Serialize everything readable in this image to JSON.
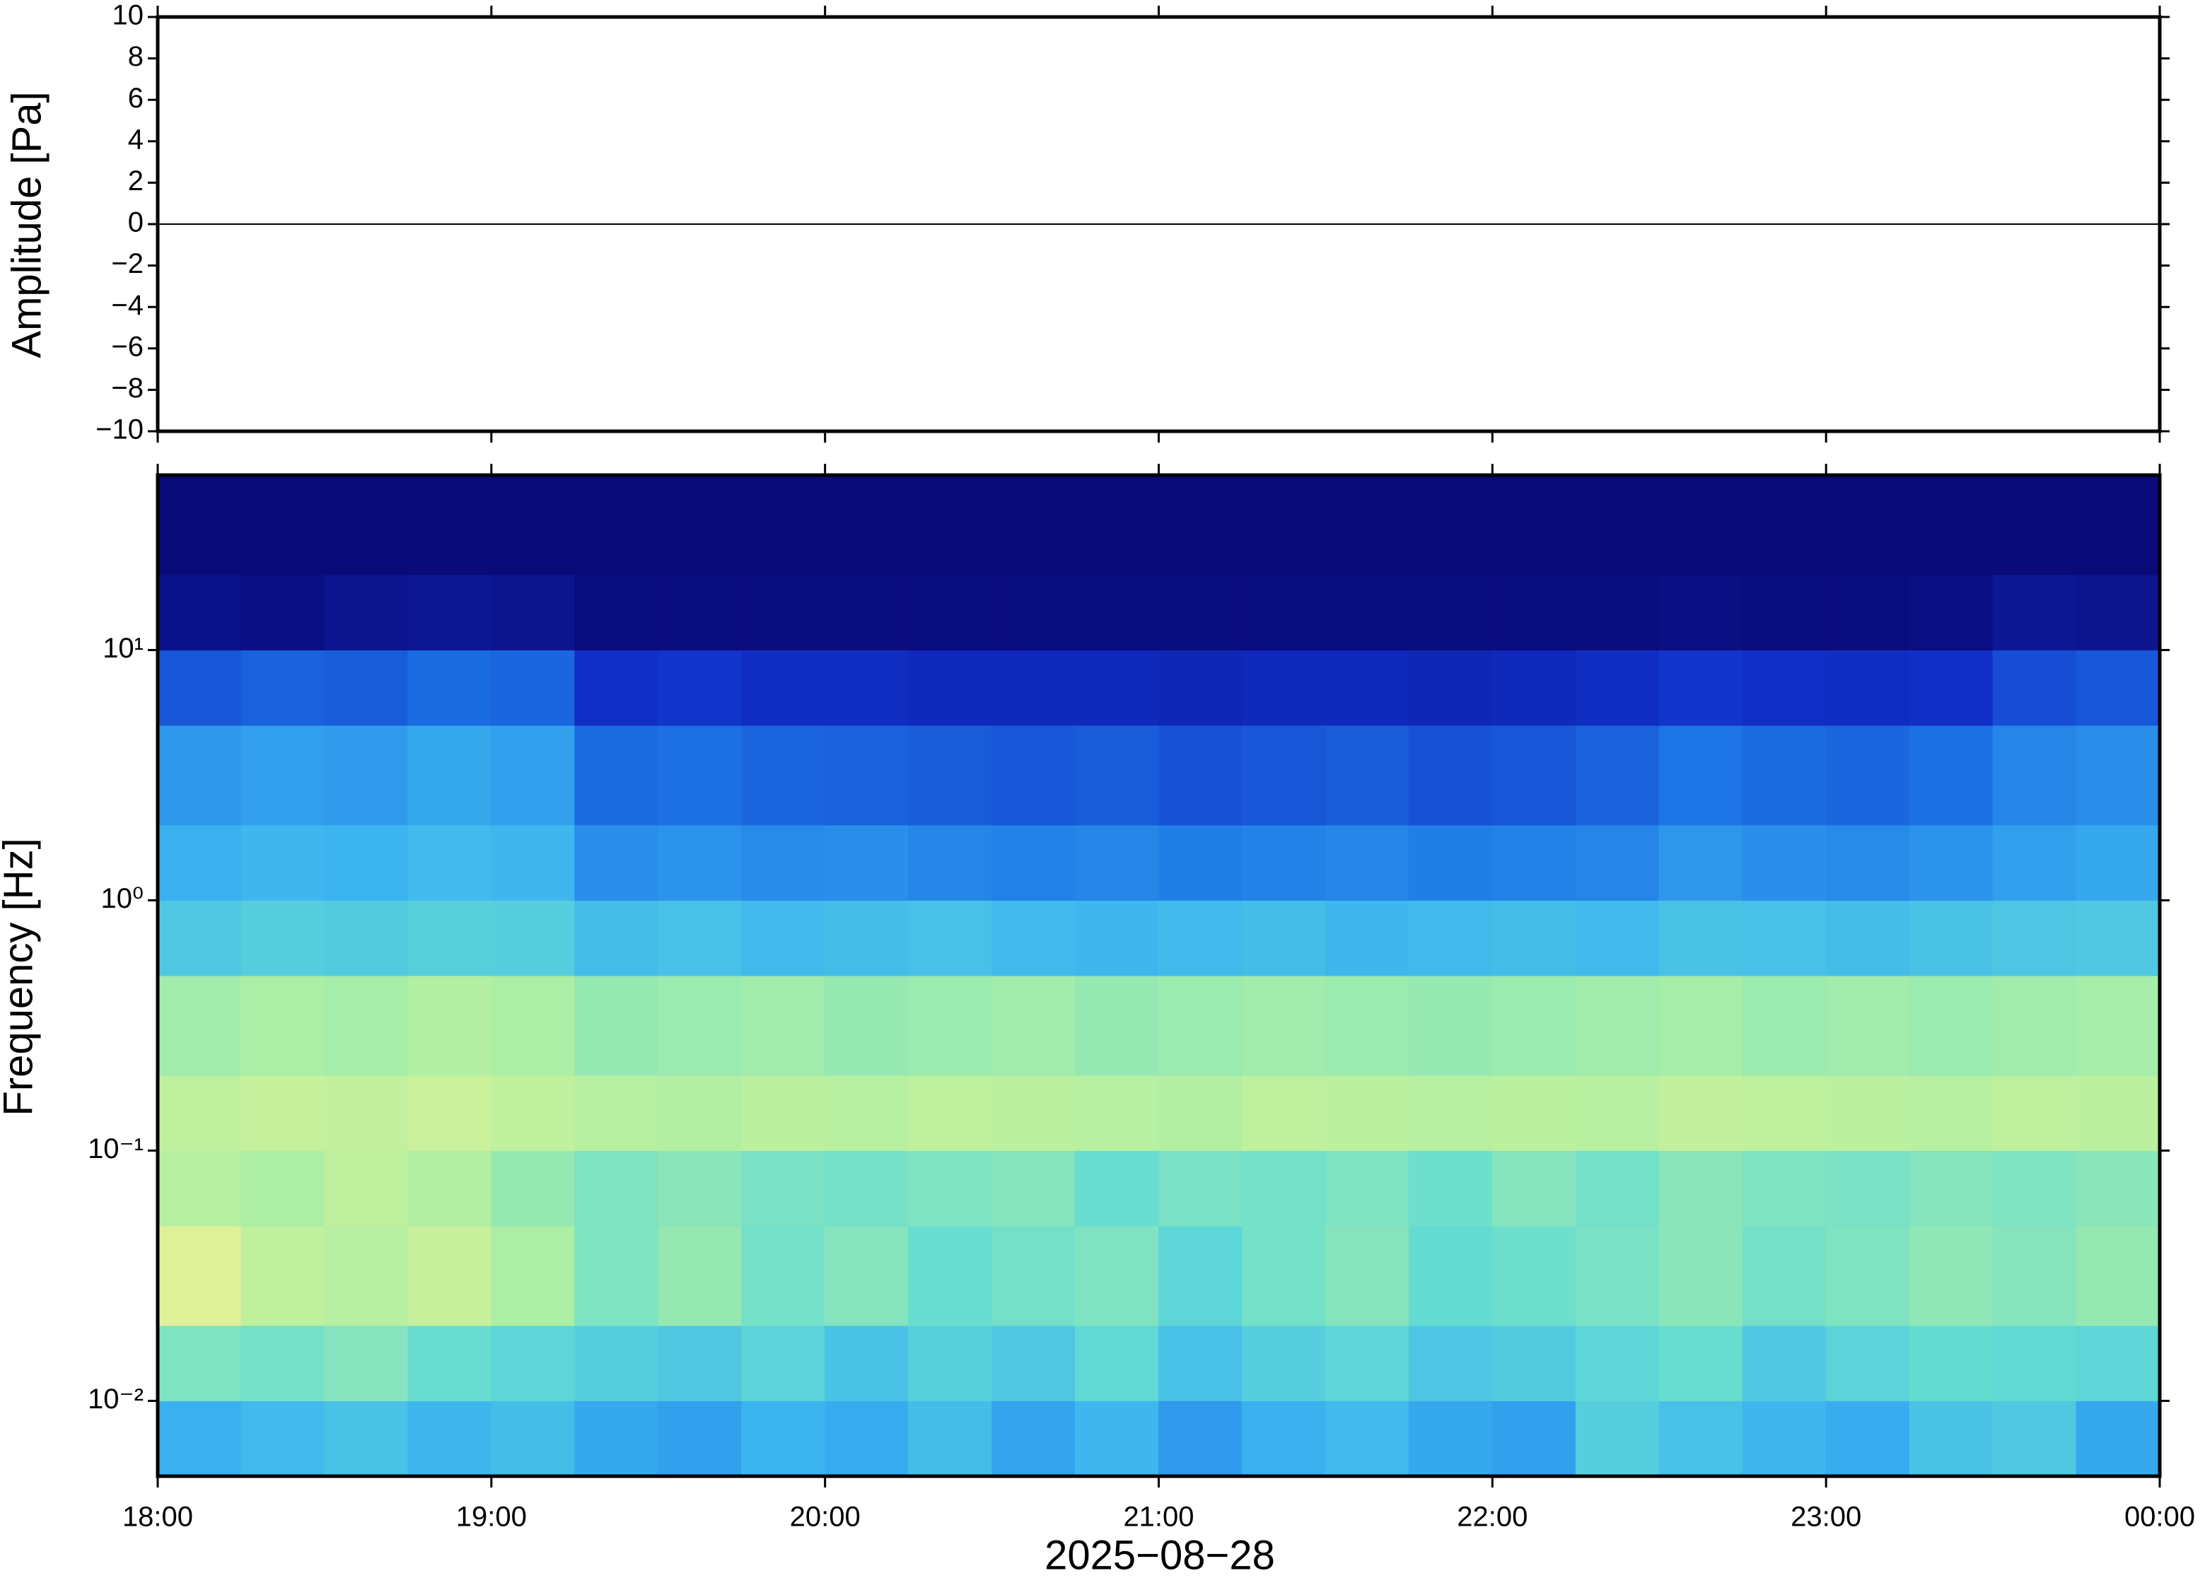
{
  "chart_data": [
    {
      "type": "line",
      "ylabel": "Amplitude [Pa]",
      "x": [
        18,
        24
      ],
      "series": [
        {
          "color": "#000000",
          "values": [
            0,
            0
          ]
        }
      ],
      "xlim": [
        18,
        24
      ],
      "xticks": [
        18,
        19,
        20,
        21,
        22,
        23,
        24
      ],
      "ylim": [
        -10,
        10
      ],
      "yticks": [
        {
          "value": -10,
          "label": "−10"
        },
        {
          "value": -8,
          "label": "−8"
        },
        {
          "value": -6,
          "label": "−6"
        },
        {
          "value": -4,
          "label": "−4"
        },
        {
          "value": -2,
          "label": "−2"
        },
        0,
        2,
        4,
        6,
        8,
        10
      ]
    },
    {
      "type": "heatmap",
      "ylabel": "Frequency [Hz]",
      "xlabel": "2025−08−28",
      "ylog": true,
      "xlim": [
        18,
        24
      ],
      "xticks": [
        {
          "value": 18,
          "label": "18:00"
        },
        {
          "value": 19,
          "label": "19:00"
        },
        {
          "value": 20,
          "label": "20:00"
        },
        {
          "value": 21,
          "label": "21:00"
        },
        {
          "value": 22,
          "label": "22:00"
        },
        {
          "value": 23,
          "label": "23:00"
        },
        {
          "value": 24,
          "label": "00:00"
        }
      ],
      "ylim": [
        0.005,
        50
      ],
      "yticks": [
        {
          "value": 0.01,
          "label": "10⁻²"
        },
        {
          "value": 0.1,
          "label": "10⁻¹"
        },
        {
          "value": 1,
          "label": "10⁰"
        },
        {
          "value": 10,
          "label": "10¹"
        }
      ],
      "x_bins": [
        18,
        18.25,
        18.5,
        18.75,
        19,
        19.25,
        19.5,
        19.75,
        20,
        20.25,
        20.5,
        20.75,
        21,
        21.25,
        21.5,
        21.75,
        22,
        22.25,
        22.5,
        22.75,
        23,
        23.25,
        23.5,
        23.75,
        24
      ],
      "y_bins": [
        0.005,
        0.01,
        0.02,
        0.05,
        0.1,
        0.2,
        0.5,
        1,
        2,
        5,
        10,
        20,
        50
      ],
      "zlim": [
        0,
        1
      ],
      "colormap": [
        "#0a0a78",
        "#1030c8",
        "#1e78e6",
        "#3cb4f0",
        "#64dcd2",
        "#b4f0a0",
        "#f0f096",
        "#f0b464"
      ],
      "values": [
        [
          0.42,
          0.45,
          0.48,
          0.44,
          0.46,
          0.4,
          0.38,
          0.43,
          0.41,
          0.46,
          0.39,
          0.44,
          0.37,
          0.42,
          0.45,
          0.4,
          0.38,
          0.52,
          0.47,
          0.44,
          0.41,
          0.48,
          0.5,
          0.4
        ],
        [
          0.62,
          0.6,
          0.63,
          0.58,
          0.55,
          0.52,
          0.5,
          0.54,
          0.48,
          0.53,
          0.5,
          0.56,
          0.47,
          0.52,
          0.55,
          0.49,
          0.51,
          0.55,
          0.58,
          0.5,
          0.54,
          0.57,
          0.56,
          0.55
        ],
        [
          0.82,
          0.74,
          0.72,
          0.76,
          0.7,
          0.62,
          0.66,
          0.6,
          0.63,
          0.58,
          0.6,
          0.62,
          0.55,
          0.6,
          0.63,
          0.57,
          0.59,
          0.61,
          0.64,
          0.6,
          0.62,
          0.65,
          0.63,
          0.66
        ],
        [
          0.72,
          0.7,
          0.74,
          0.71,
          0.66,
          0.62,
          0.64,
          0.61,
          0.6,
          0.62,
          0.63,
          0.58,
          0.61,
          0.6,
          0.62,
          0.59,
          0.63,
          0.6,
          0.64,
          0.62,
          0.61,
          0.63,
          0.62,
          0.64
        ],
        [
          0.74,
          0.76,
          0.75,
          0.77,
          0.74,
          0.72,
          0.71,
          0.73,
          0.72,
          0.74,
          0.73,
          0.72,
          0.71,
          0.74,
          0.73,
          0.72,
          0.73,
          0.72,
          0.75,
          0.74,
          0.73,
          0.72,
          0.74,
          0.73
        ],
        [
          0.68,
          0.7,
          0.69,
          0.71,
          0.7,
          0.66,
          0.67,
          0.68,
          0.66,
          0.67,
          0.68,
          0.66,
          0.67,
          0.68,
          0.67,
          0.66,
          0.67,
          0.68,
          0.69,
          0.67,
          0.68,
          0.67,
          0.68,
          0.69
        ],
        [
          0.5,
          0.52,
          0.51,
          0.53,
          0.52,
          0.46,
          0.47,
          0.45,
          0.46,
          0.47,
          0.45,
          0.44,
          0.45,
          0.46,
          0.44,
          0.45,
          0.46,
          0.45,
          0.48,
          0.47,
          0.46,
          0.48,
          0.49,
          0.5
        ],
        [
          0.42,
          0.44,
          0.43,
          0.45,
          0.44,
          0.34,
          0.35,
          0.33,
          0.34,
          0.32,
          0.31,
          0.32,
          0.3,
          0.31,
          0.32,
          0.3,
          0.31,
          0.32,
          0.36,
          0.34,
          0.33,
          0.35,
          0.38,
          0.4
        ],
        [
          0.36,
          0.38,
          0.37,
          0.4,
          0.38,
          0.26,
          0.27,
          0.25,
          0.24,
          0.23,
          0.22,
          0.23,
          0.21,
          0.22,
          0.23,
          0.21,
          0.22,
          0.24,
          0.28,
          0.26,
          0.25,
          0.27,
          0.32,
          0.34
        ],
        [
          0.22,
          0.24,
          0.23,
          0.26,
          0.25,
          0.14,
          0.15,
          0.13,
          0.13,
          0.12,
          0.12,
          0.12,
          0.11,
          0.12,
          0.12,
          0.11,
          0.12,
          0.13,
          0.15,
          0.14,
          0.13,
          0.14,
          0.2,
          0.22
        ],
        [
          0.03,
          0.02,
          0.04,
          0.05,
          0.04,
          0.01,
          0.01,
          0.01,
          0.01,
          0.01,
          0.01,
          0.01,
          0.01,
          0.01,
          0.01,
          0.01,
          0.01,
          0.01,
          0.02,
          0.01,
          0.01,
          0.02,
          0.05,
          0.04
        ],
        [
          0,
          0,
          0,
          0,
          0,
          0,
          0,
          0,
          0,
          0,
          0,
          0,
          0,
          0,
          0,
          0,
          0,
          0,
          0,
          0,
          0,
          0,
          0,
          0
        ]
      ]
    }
  ]
}
